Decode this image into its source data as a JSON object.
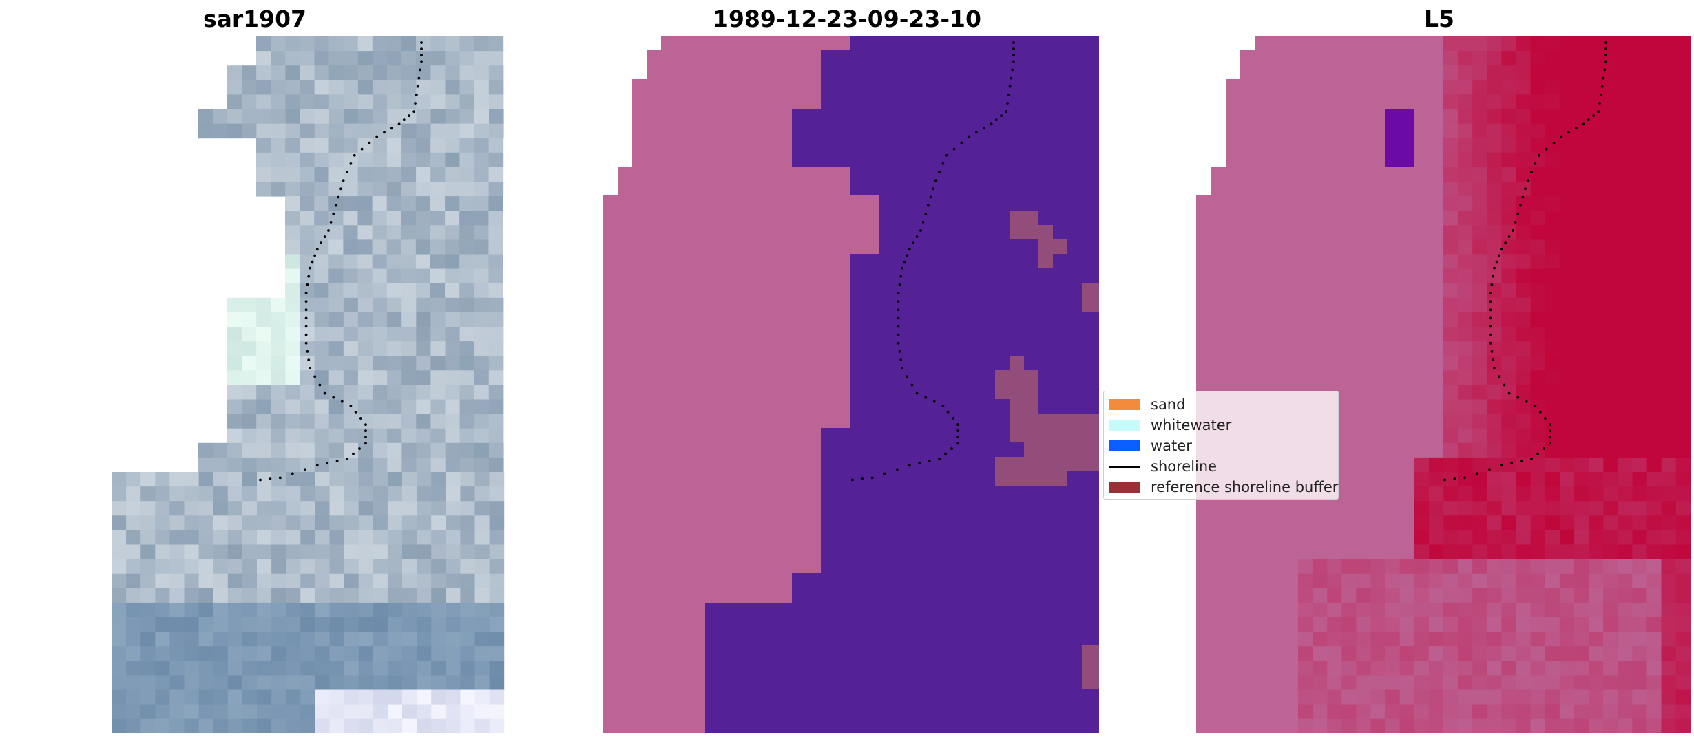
{
  "panels": [
    {
      "title": "sar1907",
      "content": "satellite-rgb"
    },
    {
      "title": "1989-12-23-09-23-10",
      "content": "classification"
    },
    {
      "title": "L5",
      "content": "probability"
    }
  ],
  "legend": {
    "items": [
      {
        "label": "sand",
        "color": "#f28c3c",
        "kind": "patch"
      },
      {
        "label": "whitewater",
        "color": "#c6fbfb",
        "kind": "patch"
      },
      {
        "label": "water",
        "color": "#0a5dff",
        "kind": "patch"
      },
      {
        "label": "shoreline",
        "color": "#000000",
        "kind": "line"
      },
      {
        "label": "reference shoreline buffer",
        "color": "#9b2f36",
        "kind": "patch"
      }
    ]
  },
  "colors": {
    "land": "#bc6495",
    "water_class": "#542196",
    "buffer": "#924d7b",
    "prob_high": "#c0063b",
    "prob_low": "#bc6495",
    "shoreline": "#000000"
  }
}
